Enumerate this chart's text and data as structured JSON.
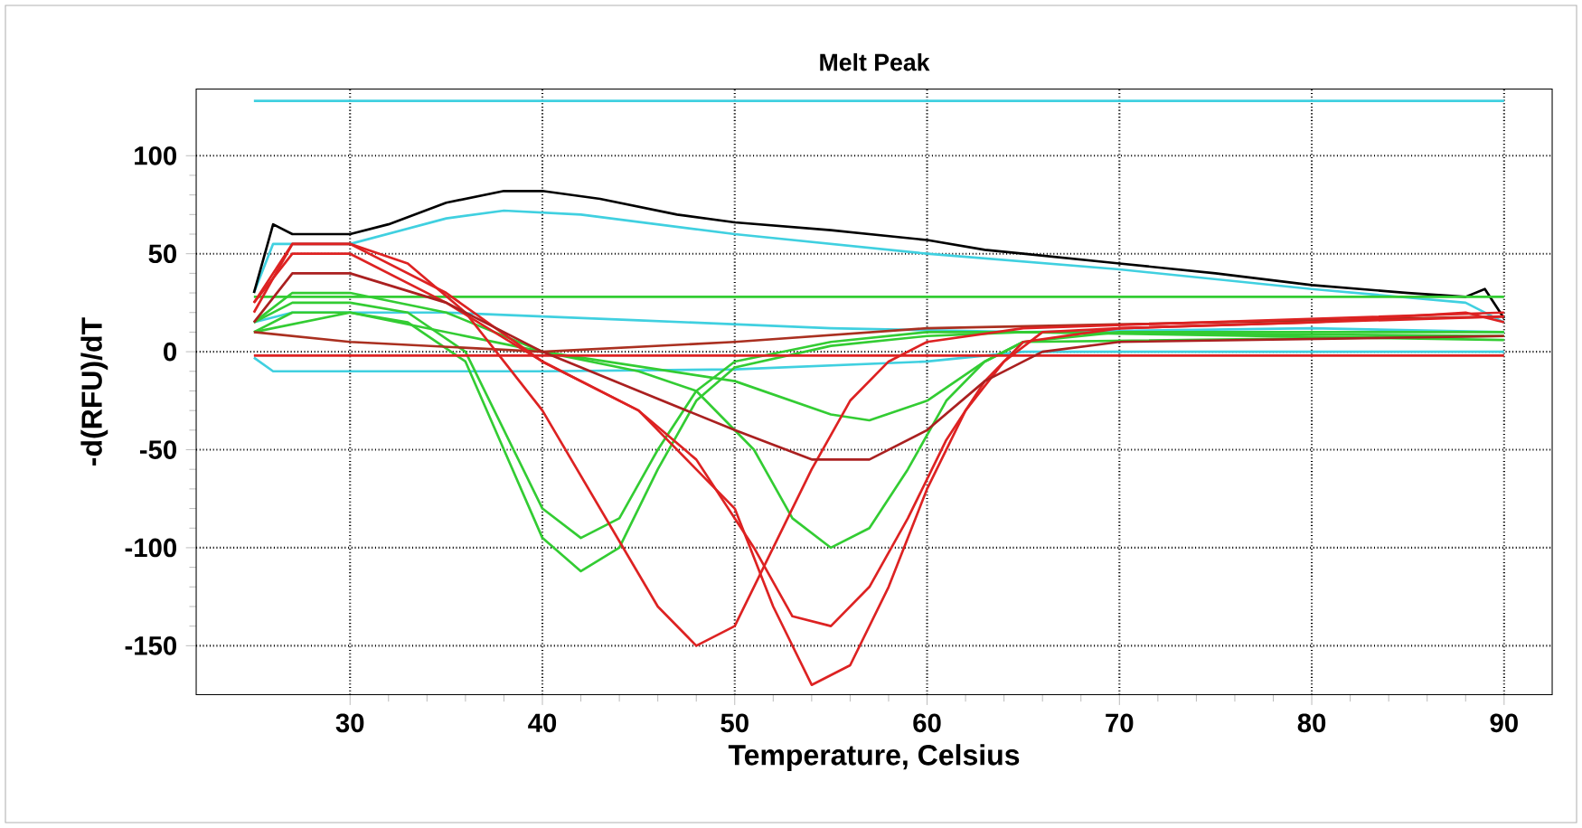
{
  "chart_data": {
    "type": "line",
    "title": "Melt Peak",
    "xlabel": "Temperature, Celsius",
    "ylabel": "-d(RFU)/dT",
    "xlim": [
      22,
      92.5
    ],
    "ylim": [
      -175,
      134
    ],
    "xticks": [
      30,
      40,
      50,
      60,
      70,
      80,
      90
    ],
    "yticks": [
      -150,
      -100,
      -50,
      0,
      50,
      100
    ],
    "grid": true,
    "line_style": "solid",
    "marker": "none",
    "series": [
      {
        "color": "#40d0e0",
        "x": [
          25,
          90
        ],
        "values": [
          128,
          128
        ]
      },
      {
        "color": "#40d0e0",
        "x": [
          25,
          26,
          30,
          35,
          38,
          42,
          50,
          60,
          70,
          80,
          88,
          90
        ],
        "values": [
          30,
          55,
          55,
          68,
          72,
          70,
          60,
          50,
          42,
          32,
          25,
          15
        ]
      },
      {
        "color": "#40d0e0",
        "x": [
          25,
          26,
          30,
          40,
          50,
          60,
          65,
          90
        ],
        "values": [
          -3,
          -10,
          -10,
          -10,
          -9,
          -5,
          0,
          0
        ]
      },
      {
        "color": "#40d0e0",
        "x": [
          25,
          27,
          35,
          45,
          55,
          65,
          80,
          90
        ],
        "values": [
          15,
          20,
          20,
          16,
          12,
          10,
          12,
          10
        ]
      },
      {
        "color": "#000000",
        "x": [
          25,
          26,
          27,
          30,
          32,
          35,
          38,
          40,
          43,
          47,
          50,
          55,
          60,
          63,
          65,
          70,
          75,
          80,
          85,
          88,
          89,
          90
        ],
        "values": [
          30,
          65,
          60,
          60,
          65,
          76,
          82,
          82,
          78,
          70,
          66,
          62,
          57,
          52,
          50,
          45,
          40,
          34,
          30,
          28,
          32,
          17
        ]
      },
      {
        "color": "#33cc33",
        "x": [
          25,
          90
        ],
        "values": [
          28,
          28
        ]
      },
      {
        "color": "#33cc33",
        "x": [
          25,
          27,
          30,
          33,
          36,
          38,
          40,
          42,
          44,
          46,
          48,
          50,
          55,
          60,
          65,
          90
        ],
        "values": [
          15,
          25,
          25,
          20,
          0,
          -40,
          -80,
          -95,
          -85,
          -50,
          -20,
          -5,
          5,
          10,
          10,
          8
        ]
      },
      {
        "color": "#33cc33",
        "x": [
          25,
          27,
          30,
          33,
          36,
          38,
          40,
          42,
          44,
          46,
          48,
          50,
          55,
          60,
          65,
          90
        ],
        "values": [
          10,
          20,
          20,
          15,
          -5,
          -50,
          -95,
          -112,
          -100,
          -60,
          -25,
          -8,
          3,
          8,
          10,
          6
        ]
      },
      {
        "color": "#33cc33",
        "x": [
          25,
          27,
          30,
          35,
          40,
          45,
          48,
          51,
          53,
          55,
          57,
          59,
          61,
          63,
          65,
          70,
          90
        ],
        "values": [
          15,
          30,
          30,
          20,
          0,
          -10,
          -20,
          -50,
          -85,
          -100,
          -90,
          -60,
          -25,
          -5,
          5,
          10,
          10
        ]
      },
      {
        "color": "#33cc33",
        "x": [
          25,
          30,
          40,
          50,
          55,
          57,
          60,
          63,
          65,
          90
        ],
        "values": [
          10,
          20,
          0,
          -15,
          -32,
          -35,
          -25,
          -5,
          5,
          8
        ]
      },
      {
        "color": "#aa3020",
        "x": [
          25,
          30,
          40,
          50,
          60,
          90
        ],
        "values": [
          10,
          5,
          0,
          5,
          12,
          18
        ]
      },
      {
        "color": "#dd2222",
        "x": [
          25,
          90
        ],
        "values": [
          -2,
          -2
        ]
      },
      {
        "color": "#dd2222",
        "x": [
          25,
          27,
          30,
          33,
          36,
          38,
          40,
          43,
          46,
          48,
          50,
          52,
          54,
          56,
          58,
          60,
          65,
          90
        ],
        "values": [
          20,
          55,
          55,
          45,
          20,
          -5,
          -30,
          -80,
          -130,
          -150,
          -140,
          -100,
          -60,
          -25,
          -5,
          5,
          12,
          20
        ]
      },
      {
        "color": "#dd2222",
        "x": [
          25,
          27,
          30,
          35,
          40,
          45,
          50,
          52,
          54,
          56,
          58,
          60,
          62,
          64,
          66,
          70,
          80,
          88,
          90
        ],
        "values": [
          25,
          55,
          55,
          30,
          -5,
          -30,
          -80,
          -130,
          -170,
          -160,
          -120,
          -70,
          -30,
          -5,
          10,
          12,
          15,
          20,
          15
        ]
      },
      {
        "color": "#dd2222",
        "x": [
          25,
          27,
          30,
          35,
          40,
          45,
          48,
          51,
          53,
          55,
          57,
          59,
          61,
          63,
          65,
          70,
          90
        ],
        "values": [
          25,
          50,
          50,
          25,
          -5,
          -30,
          -55,
          -100,
          -135,
          -140,
          -120,
          -85,
          -45,
          -15,
          5,
          12,
          18
        ]
      },
      {
        "color": "#aa2020",
        "x": [
          25,
          27,
          30,
          35,
          40,
          45,
          50,
          54,
          57,
          60,
          63,
          66,
          70,
          90
        ],
        "values": [
          15,
          40,
          40,
          25,
          0,
          -20,
          -40,
          -55,
          -55,
          -40,
          -15,
          0,
          5,
          8
        ]
      }
    ]
  }
}
